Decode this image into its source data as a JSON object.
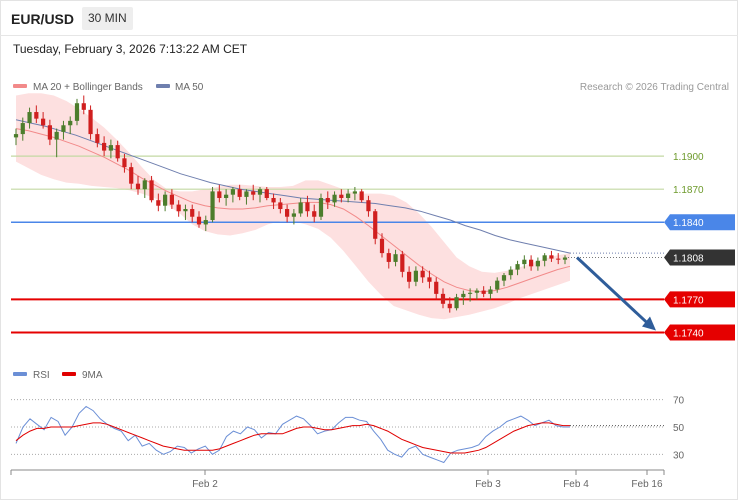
{
  "header": {
    "symbol": "EUR/USD",
    "interval": "30 MIN",
    "datetime": "Tuesday, February 3, 2026 7:13:22 AM CET"
  },
  "legend": {
    "ma20_label": "MA 20 + Bollinger Bands",
    "ma50_label": "MA 50",
    "attribution": "Research © 2026 Trading Central",
    "rsi_label": "RSI",
    "rsi_ma_label": "9MA"
  },
  "colors": {
    "bullish": "#4c7d2c",
    "bearish": "#d01f1f",
    "ma20": "#f28a8a",
    "bollinger_fill": "#fde0e0",
    "ma50": "#6f7fae",
    "resistance_green": "#c3d9a3",
    "level_blue": "#4a86e8",
    "level_red": "#e50000",
    "current_price": "#333333",
    "arrow": "#2f5d9a",
    "rsi": "#6b8fd6",
    "rsi_ma": "#e00000"
  },
  "chart_data": [
    {
      "type": "candlestick",
      "title": "",
      "ylim": [
        1.1715,
        1.196
      ],
      "x_labels": [
        "Feb 2",
        "Feb 3",
        "Feb 4",
        "Feb 16"
      ],
      "levels": [
        {
          "value": 1.19,
          "label": "1.1900",
          "style": "green-line"
        },
        {
          "value": 1.187,
          "label": "1.1870",
          "style": "green-line"
        },
        {
          "value": 1.184,
          "label": "1.1840",
          "style": "blue-tag"
        },
        {
          "value": 1.1808,
          "label": "1.1808",
          "style": "current-price"
        },
        {
          "value": 1.177,
          "label": "1.1770",
          "style": "red-tag"
        },
        {
          "value": 1.174,
          "label": "1.1740",
          "style": "red-tag"
        }
      ],
      "forecast_arrow": {
        "from": 1.1808,
        "to": 1.174
      },
      "candles": [
        [
          1.1917,
          1.1925,
          1.191,
          1.192
        ],
        [
          1.192,
          1.1935,
          1.1914,
          1.193
        ],
        [
          1.193,
          1.1944,
          1.1925,
          1.194
        ],
        [
          1.194,
          1.1946,
          1.193,
          1.1934
        ],
        [
          1.1934,
          1.194,
          1.1925,
          1.1928
        ],
        [
          1.1928,
          1.1933,
          1.191,
          1.1915
        ],
        [
          1.1915,
          1.1925,
          1.1899,
          1.1922
        ],
        [
          1.1922,
          1.1932,
          1.1915,
          1.1928
        ],
        [
          1.1928,
          1.1936,
          1.192,
          1.1932
        ],
        [
          1.1932,
          1.1952,
          1.1928,
          1.1948
        ],
        [
          1.1948,
          1.1955,
          1.1938,
          1.1942
        ],
        [
          1.1942,
          1.1946,
          1.1915,
          1.192
        ],
        [
          1.192,
          1.1925,
          1.1908,
          1.1912
        ],
        [
          1.1912,
          1.1918,
          1.19,
          1.1905
        ],
        [
          1.1905,
          1.1915,
          1.1898,
          1.191
        ],
        [
          1.191,
          1.1914,
          1.1895,
          1.1898
        ],
        [
          1.1898,
          1.1902,
          1.1885,
          1.189
        ],
        [
          1.189,
          1.1894,
          1.187,
          1.1875
        ],
        [
          1.1875,
          1.1882,
          1.1865,
          1.187
        ],
        [
          1.187,
          1.188,
          1.1862,
          1.1878
        ],
        [
          1.1878,
          1.1882,
          1.1858,
          1.186
        ],
        [
          1.186,
          1.1866,
          1.185,
          1.1855
        ],
        [
          1.1855,
          1.1868,
          1.185,
          1.1865
        ],
        [
          1.1865,
          1.187,
          1.1852,
          1.1856
        ],
        [
          1.1856,
          1.186,
          1.1845,
          1.185
        ],
        [
          1.185,
          1.1856,
          1.1842,
          1.1852
        ],
        [
          1.1852,
          1.1856,
          1.184,
          1.1845
        ],
        [
          1.1845,
          1.185,
          1.1835,
          1.1838
        ],
        [
          1.1838,
          1.1846,
          1.1832,
          1.1842
        ],
        [
          1.1842,
          1.1872,
          1.184,
          1.1868
        ],
        [
          1.1868,
          1.1874,
          1.1858,
          1.1862
        ],
        [
          1.1862,
          1.187,
          1.1855,
          1.1865
        ],
        [
          1.1865,
          1.1872,
          1.1858,
          1.187
        ],
        [
          1.187,
          1.1874,
          1.186,
          1.1863
        ],
        [
          1.1863,
          1.187,
          1.1856,
          1.1868
        ],
        [
          1.1868,
          1.1874,
          1.186,
          1.1865
        ],
        [
          1.1865,
          1.1872,
          1.1858,
          1.187
        ],
        [
          1.187,
          1.1872,
          1.186,
          1.1862
        ],
        [
          1.1862,
          1.1866,
          1.1852,
          1.1858
        ],
        [
          1.1858,
          1.1862,
          1.1848,
          1.1852
        ],
        [
          1.1852,
          1.1856,
          1.184,
          1.1845
        ],
        [
          1.1845,
          1.1852,
          1.1838,
          1.1848
        ],
        [
          1.1848,
          1.1862,
          1.1845,
          1.1858
        ],
        [
          1.1858,
          1.1864,
          1.1845,
          1.185
        ],
        [
          1.185,
          1.1856,
          1.184,
          1.1845
        ],
        [
          1.1845,
          1.1866,
          1.1842,
          1.1862
        ],
        [
          1.1862,
          1.1868,
          1.1852,
          1.1858
        ],
        [
          1.1858,
          1.1868,
          1.1854,
          1.1865
        ],
        [
          1.1865,
          1.187,
          1.1858,
          1.1862
        ],
        [
          1.1862,
          1.187,
          1.1858,
          1.1866
        ],
        [
          1.1866,
          1.1872,
          1.186,
          1.1868
        ],
        [
          1.1868,
          1.187,
          1.1858,
          1.186
        ],
        [
          1.186,
          1.1864,
          1.1845,
          1.185
        ],
        [
          1.185,
          1.1852,
          1.182,
          1.1825
        ],
        [
          1.1825,
          1.183,
          1.1808,
          1.1812
        ],
        [
          1.1812,
          1.1816,
          1.1798,
          1.1804
        ],
        [
          1.1804,
          1.1815,
          1.18,
          1.1811
        ],
        [
          1.1811,
          1.1814,
          1.179,
          1.1795
        ],
        [
          1.1795,
          1.18,
          1.178,
          1.1786
        ],
        [
          1.1786,
          1.18,
          1.1782,
          1.1796
        ],
        [
          1.1796,
          1.18,
          1.1785,
          1.179
        ],
        [
          1.179,
          1.1796,
          1.178,
          1.1786
        ],
        [
          1.1786,
          1.179,
          1.177,
          1.1775
        ],
        [
          1.1775,
          1.178,
          1.1762,
          1.1766
        ],
        [
          1.1766,
          1.1772,
          1.1758,
          1.1762
        ],
        [
          1.1762,
          1.1775,
          1.176,
          1.1772
        ],
        [
          1.1772,
          1.1778,
          1.1765,
          1.1775
        ],
        [
          1.1775,
          1.178,
          1.1768,
          1.1776
        ],
        [
          1.1776,
          1.178,
          1.177,
          1.1778
        ],
        [
          1.1778,
          1.1782,
          1.1772,
          1.1775
        ],
        [
          1.1775,
          1.1782,
          1.177,
          1.1779
        ],
        [
          1.1779,
          1.179,
          1.1776,
          1.1787
        ],
        [
          1.1787,
          1.1794,
          1.1782,
          1.1792
        ],
        [
          1.1792,
          1.18,
          1.1788,
          1.1797
        ],
        [
          1.1797,
          1.1805,
          1.1792,
          1.1802
        ],
        [
          1.1802,
          1.181,
          1.1798,
          1.1806
        ],
        [
          1.1806,
          1.181,
          1.1796,
          1.18
        ],
        [
          1.18,
          1.1808,
          1.1796,
          1.1805
        ],
        [
          1.1805,
          1.1812,
          1.18,
          1.181
        ],
        [
          1.181,
          1.1814,
          1.1804,
          1.1807
        ],
        [
          1.1807,
          1.1812,
          1.1802,
          1.1806
        ],
        [
          1.1806,
          1.181,
          1.1802,
          1.1808
        ]
      ],
      "ma20": [
        1.1925,
        1.1923,
        1.192,
        1.1917,
        1.1913,
        1.1909,
        1.1904,
        1.1899,
        1.1893,
        1.1887,
        1.188,
        1.1874,
        1.1868,
        1.1863,
        1.1858,
        1.1855,
        1.1853,
        1.1852,
        1.1852,
        1.1853,
        1.1855,
        1.1856,
        1.1857,
        1.1858,
        1.1858,
        1.1856,
        1.1852,
        1.1845,
        1.1837,
        1.1828,
        1.1819,
        1.181,
        1.1801,
        1.1793,
        1.1786,
        1.1781,
        1.1778,
        1.1777,
        1.1778,
        1.1781,
        1.1785,
        1.1789,
        1.1793,
        1.1797,
        1.18
      ],
      "bb_upper": [
        1.1955,
        1.1957,
        1.1957,
        1.1955,
        1.195,
        1.1943,
        1.1935,
        1.1926,
        1.1915,
        1.1903,
        1.189,
        1.1878,
        1.187,
        1.1868,
        1.1868,
        1.187,
        1.1872,
        1.1874,
        1.1874,
        1.1873,
        1.1872,
        1.1872,
        1.1873,
        1.1878,
        1.1878,
        1.1874,
        1.187,
        1.1866,
        1.1866,
        1.1866,
        1.1864,
        1.1858,
        1.1848,
        1.1836,
        1.1822,
        1.1808,
        1.18,
        1.1795,
        1.1794,
        1.1796,
        1.1799,
        1.1803,
        1.1807,
        1.181,
        1.1812
      ],
      "bb_lower": [
        1.1895,
        1.1889,
        1.1883,
        1.1879,
        1.1876,
        1.1875,
        1.1873,
        1.1872,
        1.1871,
        1.1869,
        1.1866,
        1.1862,
        1.1856,
        1.1848,
        1.1838,
        1.1832,
        1.1829,
        1.1828,
        1.183,
        1.1833,
        1.1838,
        1.1841,
        1.1841,
        1.1838,
        1.1834,
        1.1826,
        1.1814,
        1.18,
        1.1786,
        1.1774,
        1.1764,
        1.176,
        1.1756,
        1.1753,
        1.1752,
        1.1754,
        1.1756,
        1.1759,
        1.1762,
        1.1766,
        1.1771,
        1.1775,
        1.1779,
        1.1783,
        1.1787
      ],
      "ma50": [
        1.1933,
        1.193,
        1.1927,
        1.1923,
        1.1919,
        1.1914,
        1.1909,
        1.1904,
        1.1899,
        1.1894,
        1.1889,
        1.1884,
        1.188,
        1.1876,
        1.1873,
        1.187,
        1.1868,
        1.1866,
        1.1864,
        1.1862,
        1.1861,
        1.186,
        1.1859,
        1.1858,
        1.1857,
        1.1855,
        1.1853,
        1.185,
        1.1846,
        1.1842,
        1.1837,
        1.1833,
        1.1828,
        1.1824,
        1.1821,
        1.1818,
        1.1815,
        1.1812
      ]
    },
    {
      "type": "line",
      "title": "",
      "ylim": [
        20,
        80
      ],
      "y_ticks": [
        30,
        50,
        70
      ],
      "series": [
        {
          "name": "RSI",
          "values": [
            38,
            50,
            56,
            52,
            48,
            57,
            54,
            44,
            50,
            60,
            65,
            62,
            56,
            52,
            49,
            47,
            40,
            44,
            36,
            38,
            33,
            30,
            32,
            36,
            35,
            31,
            34,
            36,
            30,
            33,
            43,
            47,
            45,
            50,
            48,
            42,
            46,
            45,
            52,
            55,
            58,
            56,
            51,
            45,
            47,
            48,
            53,
            57,
            57,
            55,
            54,
            47,
            41,
            33,
            30,
            28,
            34,
            36,
            30,
            28,
            26,
            24,
            31,
            33,
            34,
            35,
            37,
            43,
            47,
            50,
            54,
            56,
            58,
            55,
            51,
            53,
            55,
            51,
            50,
            50
          ]
        },
        {
          "name": "9MA",
          "values": [
            40,
            44,
            47,
            49,
            49,
            50,
            50,
            50,
            50,
            51,
            52,
            53,
            53,
            52,
            50,
            48,
            46,
            44,
            42,
            40,
            38,
            36,
            35,
            34,
            33,
            33,
            33,
            33,
            33,
            34,
            36,
            38,
            40,
            42,
            44,
            45,
            45,
            45,
            45,
            47,
            49,
            50,
            50,
            49,
            48,
            48,
            49,
            50,
            51,
            51,
            52,
            51,
            49,
            47,
            44,
            41,
            39,
            37,
            35,
            34,
            33,
            32,
            31,
            31,
            31,
            32,
            33,
            35,
            38,
            41,
            44,
            47,
            49,
            51,
            52,
            53,
            53,
            52,
            51,
            51
          ]
        }
      ]
    }
  ]
}
